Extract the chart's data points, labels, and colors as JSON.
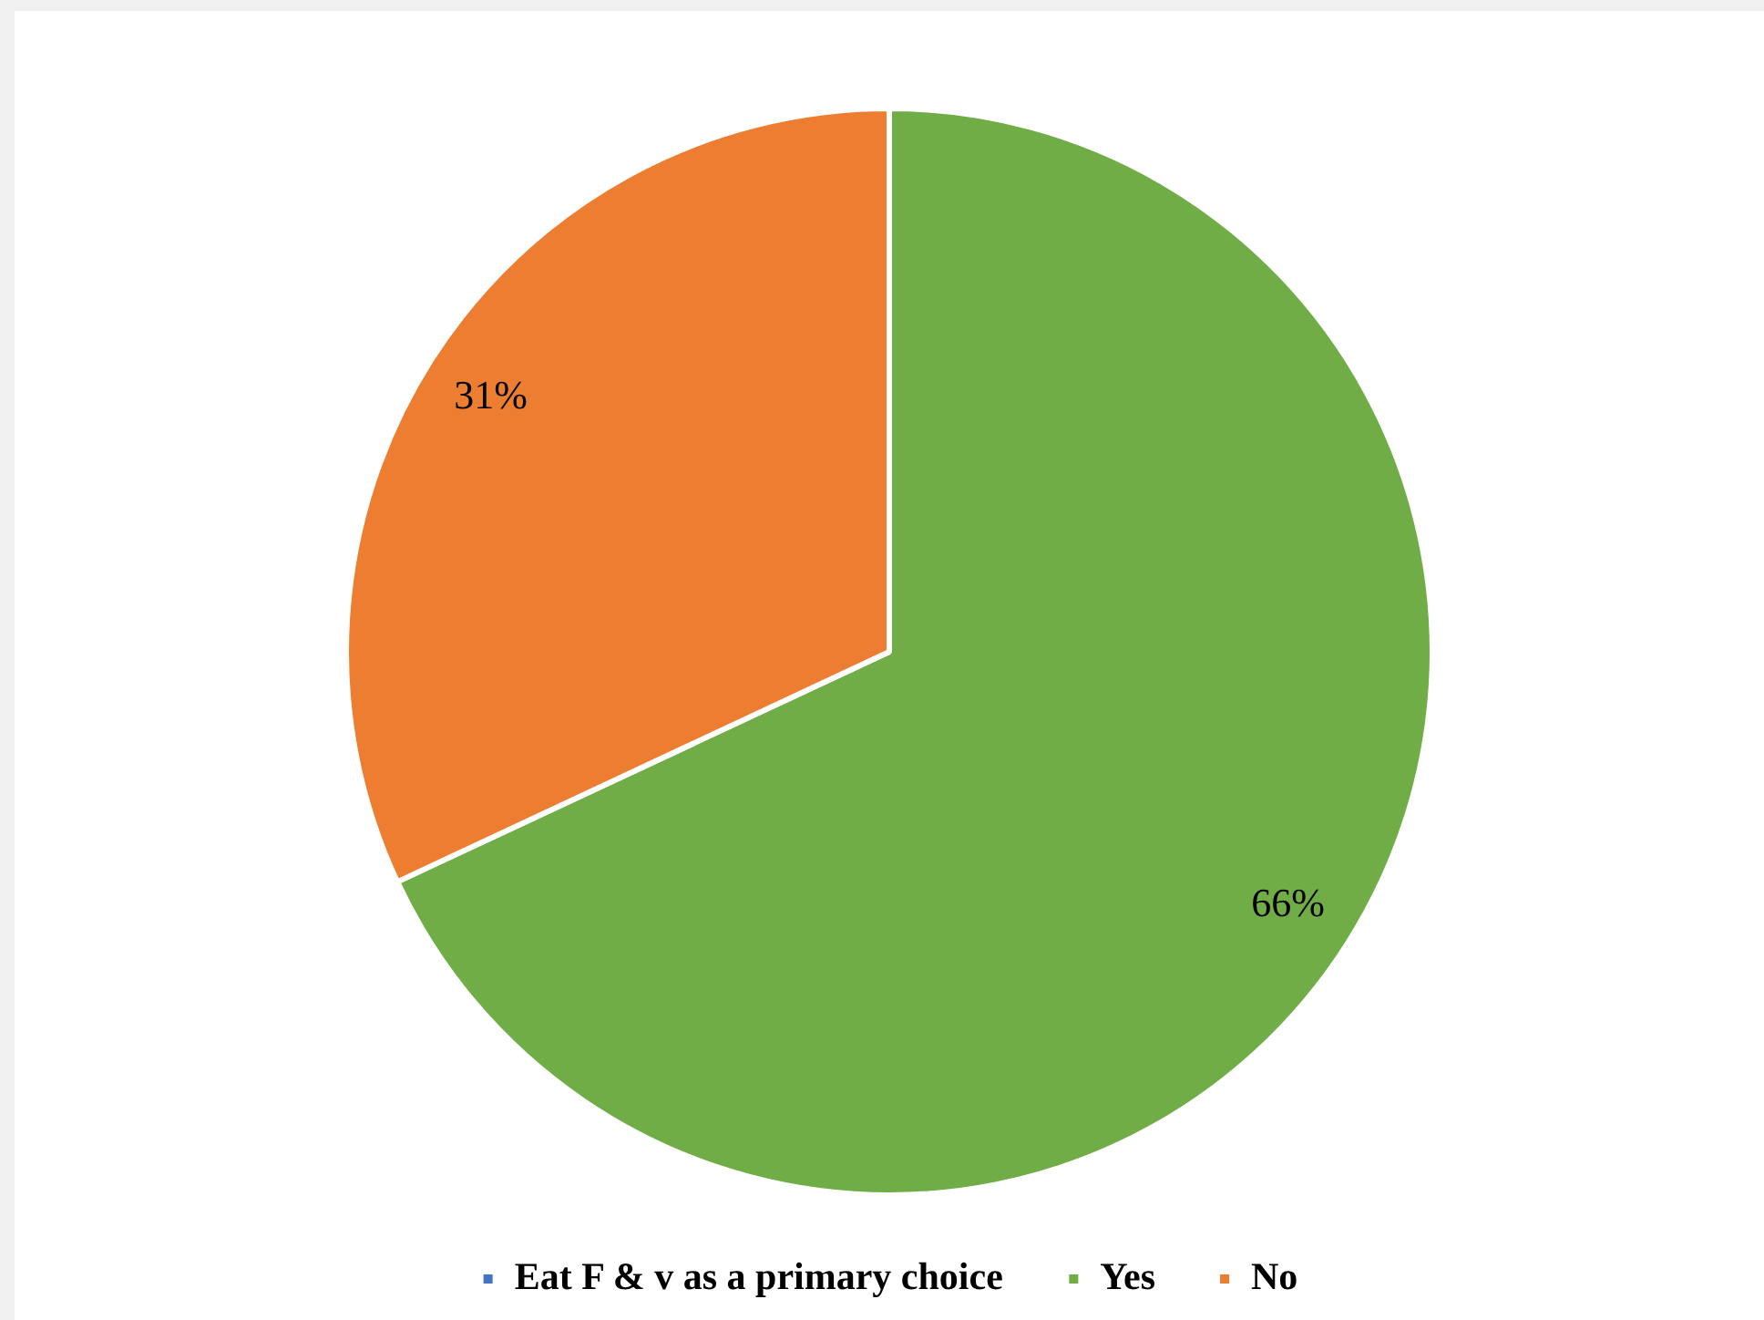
{
  "chart_data": {
    "type": "pie",
    "categories": [
      "Eat F & v as a primary choice",
      "Yes",
      "No"
    ],
    "values": [
      0,
      66,
      31
    ],
    "colors": [
      "#4472c4",
      "#70ad47",
      "#ed7d31"
    ],
    "value_labels": [
      null,
      "66%",
      "31%"
    ],
    "legend": "bottom"
  }
}
